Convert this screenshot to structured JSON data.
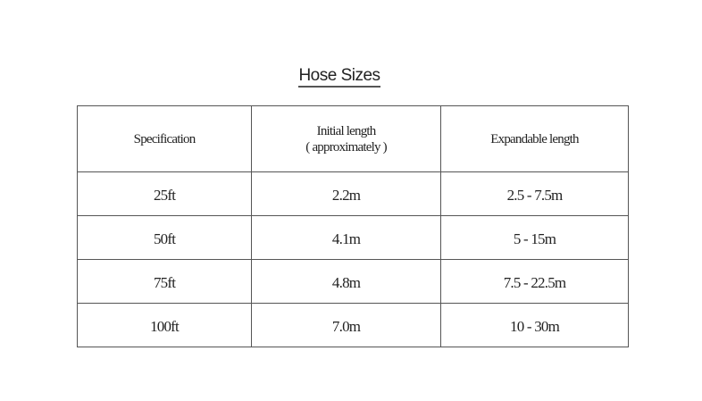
{
  "title": "Hose Sizes",
  "table": {
    "headers": [
      "Specification",
      "Initial length",
      "( approximately )",
      "Expandable length"
    ],
    "rows": [
      [
        "25ft",
        "2.2m",
        "2.5 - 7.5m"
      ],
      [
        "50ft",
        "4.1m",
        "5 - 15m"
      ],
      [
        "75ft",
        "4.8m",
        "7.5 - 22.5m"
      ],
      [
        "100ft",
        "7.0m",
        "10 - 30m"
      ]
    ]
  }
}
